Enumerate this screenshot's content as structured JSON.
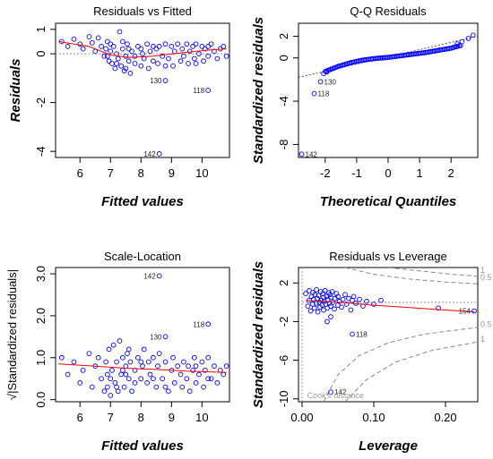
{
  "figure_title": "",
  "chart_data": [
    {
      "id": "rvf",
      "type": "scatter",
      "title": "Residuals vs Fitted",
      "xlabel": "Fitted values",
      "ylabel": "Residuals",
      "xlim": [
        5.2,
        10.9
      ],
      "ylim": [
        -4.25,
        1.25
      ],
      "xticks": [
        6,
        7,
        8,
        9,
        10
      ],
      "yticks": [
        1,
        0,
        -2,
        -4
      ],
      "y_tick_rotated": true,
      "point_color": "#0000ff",
      "smooth_color": "#ff0000",
      "refline": {
        "type": "h",
        "value": 0
      },
      "smooth": [
        [
          5.3,
          0.5
        ],
        [
          6.3,
          0.3
        ],
        [
          7.0,
          -0.05
        ],
        [
          7.6,
          -0.15
        ],
        [
          8.4,
          -0.1
        ],
        [
          9.4,
          0.05
        ],
        [
          10.2,
          0.15
        ],
        [
          10.8,
          0.2
        ]
      ],
      "points": [
        [
          5.4,
          0.5
        ],
        [
          5.6,
          0.3
        ],
        [
          5.8,
          0.6
        ],
        [
          6.0,
          0.4
        ],
        [
          6.1,
          0.2
        ],
        [
          6.3,
          0.7
        ],
        [
          6.4,
          0.45
        ],
        [
          6.5,
          0.1
        ],
        [
          6.6,
          0.65
        ],
        [
          6.7,
          0.3
        ],
        [
          6.8,
          -0.1
        ],
        [
          6.85,
          0.2
        ],
        [
          6.9,
          0.5
        ],
        [
          6.95,
          -0.3
        ],
        [
          7.0,
          0.1
        ],
        [
          7.05,
          -0.4
        ],
        [
          7.1,
          0.3
        ],
        [
          7.15,
          -0.6
        ],
        [
          7.2,
          0.0
        ],
        [
          7.25,
          -0.2
        ],
        [
          7.3,
          0.9
        ],
        [
          7.35,
          -0.5
        ],
        [
          7.4,
          0.2
        ],
        [
          7.45,
          -0.7
        ],
        [
          7.5,
          -0.1
        ],
        [
          7.55,
          0.4
        ],
        [
          7.6,
          -0.3
        ],
        [
          7.65,
          -0.8
        ],
        [
          7.7,
          0.1
        ],
        [
          7.8,
          -0.4
        ],
        [
          7.9,
          0.3
        ],
        [
          8.0,
          -0.5
        ],
        [
          8.05,
          0.0
        ],
        [
          8.1,
          -0.2
        ],
        [
          8.2,
          0.4
        ],
        [
          8.25,
          -0.6
        ],
        [
          8.3,
          0.1
        ],
        [
          8.4,
          -0.3
        ],
        [
          8.5,
          0.2
        ],
        [
          8.55,
          -0.4
        ],
        [
          8.6,
          0.3
        ],
        [
          8.7,
          -0.1
        ],
        [
          8.8,
          0.4
        ],
        [
          8.9,
          -0.2
        ],
        [
          9.0,
          0.3
        ],
        [
          9.05,
          -0.5
        ],
        [
          9.1,
          0.1
        ],
        [
          9.2,
          0.4
        ],
        [
          9.3,
          -0.3
        ],
        [
          9.35,
          0.2
        ],
        [
          9.4,
          -0.1
        ],
        [
          9.5,
          0.4
        ],
        [
          9.55,
          -0.4
        ],
        [
          9.6,
          0.1
        ],
        [
          9.7,
          0.3
        ],
        [
          9.75,
          -0.2
        ],
        [
          9.8,
          0.4
        ],
        [
          9.9,
          0.0
        ],
        [
          10.0,
          0.3
        ],
        [
          10.05,
          -0.3
        ],
        [
          10.1,
          0.2
        ],
        [
          10.2,
          -0.1
        ],
        [
          10.3,
          0.4
        ],
        [
          10.4,
          0.1
        ],
        [
          10.5,
          -0.2
        ],
        [
          10.6,
          0.2
        ],
        [
          10.7,
          0.3
        ],
        [
          10.8,
          -0.1
        ],
        [
          7.0,
          0.4
        ],
        [
          7.2,
          -0.4
        ],
        [
          7.4,
          0.5
        ],
        [
          7.6,
          0.2
        ],
        [
          7.8,
          -0.1
        ],
        [
          8.0,
          0.2
        ],
        [
          8.8,
          -0.5
        ],
        [
          9.8,
          -0.4
        ],
        [
          10.2,
          0.3
        ],
        [
          6.9,
          -0.1
        ],
        [
          7.5,
          -0.6
        ],
        [
          8.4,
          0.3
        ]
      ],
      "outliers": [
        {
          "label": "130",
          "x": 8.8,
          "y": -1.1
        },
        {
          "label": "118",
          "x": 10.2,
          "y": -1.5
        },
        {
          "label": "142",
          "x": 8.6,
          "y": -4.1
        }
      ]
    },
    {
      "id": "qq",
      "type": "scatter",
      "title": "Q-Q Residuals",
      "xlabel": "Theoretical Quantiles",
      "ylabel": "Standardized residuals",
      "xlim": [
        -2.85,
        2.85
      ],
      "ylim": [
        -9.2,
        3.2
      ],
      "xticks": [
        -2,
        -1,
        0,
        1,
        2
      ],
      "yticks": [
        2,
        0,
        -4,
        -8
      ],
      "y_tick_rotated": true,
      "point_color": "#0000ff",
      "refline": {
        "type": "ab",
        "points": [
          [
            -2.85,
            -1.8
          ],
          [
            2.85,
            2.0
          ]
        ]
      },
      "qq_curve": [
        [
          -2.0,
          -1.25
        ],
        [
          -1.6,
          -0.8
        ],
        [
          -1.2,
          -0.45
        ],
        [
          -0.8,
          -0.2
        ],
        [
          -0.4,
          -0.05
        ],
        [
          0.0,
          0.05
        ],
        [
          0.4,
          0.2
        ],
        [
          0.8,
          0.35
        ],
        [
          1.2,
          0.5
        ],
        [
          1.6,
          0.7
        ],
        [
          2.0,
          0.9
        ],
        [
          2.3,
          1.15
        ]
      ],
      "curve_points": 95,
      "extra_points": [
        [
          2.2,
          1.3
        ],
        [
          2.35,
          1.5
        ],
        [
          2.55,
          1.8
        ],
        [
          2.7,
          2.1
        ],
        [
          -1.95,
          -1.3
        ],
        [
          -2.05,
          -1.45
        ]
      ],
      "outliers": [
        {
          "label": "130",
          "x": -2.15,
          "y": -2.2
        },
        {
          "label": "118",
          "x": -2.35,
          "y": -3.3
        },
        {
          "label": "142",
          "x": -2.75,
          "y": -8.9
        }
      ]
    },
    {
      "id": "sl",
      "type": "scatter",
      "title": "Scale-Location",
      "xlabel": "Fitted values",
      "ylabel": "√|Standardized residuals|",
      "xlim": [
        5.2,
        10.9
      ],
      "ylim": [
        -0.05,
        3.15
      ],
      "xticks": [
        6,
        7,
        8,
        9,
        10
      ],
      "yticks": [
        3.0,
        2.0,
        1.0,
        0.0
      ],
      "y_tick_labels": [
        "3.0",
        "2.0",
        "1.0",
        "0.0"
      ],
      "y_tick_rotated": true,
      "point_color": "#0000ff",
      "smooth_color": "#ff0000",
      "smooth": [
        [
          5.3,
          0.85
        ],
        [
          6.5,
          0.8
        ],
        [
          7.5,
          0.75
        ],
        [
          8.5,
          0.72
        ],
        [
          9.5,
          0.68
        ],
        [
          10.8,
          0.65
        ]
      ],
      "points": [
        [
          5.4,
          1.0
        ],
        [
          5.6,
          0.6
        ],
        [
          5.8,
          0.9
        ],
        [
          6.0,
          0.4
        ],
        [
          6.1,
          0.7
        ],
        [
          6.3,
          1.1
        ],
        [
          6.4,
          0.3
        ],
        [
          6.5,
          0.8
        ],
        [
          6.6,
          1.0
        ],
        [
          6.7,
          0.5
        ],
        [
          6.8,
          0.2
        ],
        [
          6.85,
          0.9
        ],
        [
          6.9,
          0.6
        ],
        [
          6.95,
          1.2
        ],
        [
          7.0,
          0.1
        ],
        [
          7.05,
          0.7
        ],
        [
          7.1,
          1.3
        ],
        [
          7.15,
          0.4
        ],
        [
          7.2,
          0.9
        ],
        [
          7.25,
          0.2
        ],
        [
          7.3,
          1.4
        ],
        [
          7.35,
          0.6
        ],
        [
          7.4,
          1.0
        ],
        [
          7.45,
          0.3
        ],
        [
          7.5,
          0.8
        ],
        [
          7.55,
          1.1
        ],
        [
          7.6,
          0.5
        ],
        [
          7.65,
          0.9
        ],
        [
          7.7,
          0.2
        ],
        [
          7.8,
          0.7
        ],
        [
          7.9,
          1.0
        ],
        [
          8.0,
          0.5
        ],
        [
          8.05,
          0.8
        ],
        [
          8.1,
          1.2
        ],
        [
          8.2,
          0.4
        ],
        [
          8.25,
          0.9
        ],
        [
          8.3,
          0.6
        ],
        [
          8.4,
          1.0
        ],
        [
          8.5,
          0.3
        ],
        [
          8.55,
          0.8
        ],
        [
          8.6,
          1.1
        ],
        [
          8.7,
          0.5
        ],
        [
          8.8,
          0.9
        ],
        [
          8.9,
          0.2
        ],
        [
          9.0,
          0.7
        ],
        [
          9.05,
          1.0
        ],
        [
          9.1,
          0.4
        ],
        [
          9.2,
          0.8
        ],
        [
          9.3,
          0.6
        ],
        [
          9.35,
          0.3
        ],
        [
          9.4,
          0.9
        ],
        [
          9.5,
          0.5
        ],
        [
          9.55,
          0.8
        ],
        [
          9.6,
          0.2
        ],
        [
          9.7,
          0.7
        ],
        [
          9.75,
          1.0
        ],
        [
          9.8,
          0.4
        ],
        [
          9.9,
          0.6
        ],
        [
          10.0,
          0.9
        ],
        [
          10.05,
          0.3
        ],
        [
          10.1,
          0.7
        ],
        [
          10.2,
          1.0
        ],
        [
          10.3,
          0.5
        ],
        [
          10.4,
          0.8
        ],
        [
          10.5,
          0.4
        ],
        [
          10.6,
          0.7
        ],
        [
          10.7,
          0.6
        ],
        [
          10.8,
          0.8
        ],
        [
          7.0,
          0.5
        ],
        [
          7.2,
          0.3
        ],
        [
          7.4,
          0.7
        ],
        [
          7.6,
          1.2
        ],
        [
          7.8,
          0.4
        ],
        [
          8.0,
          0.9
        ],
        [
          8.8,
          0.3
        ],
        [
          9.8,
          0.8
        ],
        [
          10.2,
          0.5
        ],
        [
          6.9,
          0.3
        ],
        [
          7.5,
          0.6
        ],
        [
          8.4,
          0.5
        ]
      ],
      "outliers": [
        {
          "label": "142",
          "x": 8.6,
          "y": 2.95
        },
        {
          "label": "118",
          "x": 10.2,
          "y": 1.8
        },
        {
          "label": "130",
          "x": 8.8,
          "y": 1.5
        }
      ]
    },
    {
      "id": "rvl",
      "type": "scatter",
      "title": "Residuals vs Leverage",
      "xlabel": "Leverage",
      "ylabel": "Standardized residuals",
      "xlim": [
        -0.005,
        0.245
      ],
      "ylim": [
        -10.3,
        3.6
      ],
      "xticks": [
        0.0,
        0.1,
        0.2
      ],
      "x_tick_labels": [
        "0.00",
        "0.10",
        "0.20"
      ],
      "yticks": [
        2,
        -2,
        -6,
        -10
      ],
      "y_tick_rotated": true,
      "point_color": "#0000ff",
      "smooth_color": "#ff0000",
      "smooth": [
        [
          0.005,
          0.2
        ],
        [
          0.05,
          0.0
        ],
        [
          0.1,
          -0.3
        ],
        [
          0.15,
          -0.55
        ],
        [
          0.2,
          -0.8
        ],
        [
          0.24,
          -1.0
        ]
      ],
      "cook_levels": [
        "0.5",
        "1"
      ],
      "cook_label": "Cook's distance",
      "cook_curves": {
        "upper_05": [
          [
            0.06,
            3.6
          ],
          [
            0.1,
            2.9
          ],
          [
            0.15,
            2.4
          ],
          [
            0.2,
            2.1
          ],
          [
            0.245,
            1.9
          ]
        ],
        "upper_1": [
          [
            0.12,
            3.6
          ],
          [
            0.17,
            3.2
          ],
          [
            0.21,
            2.9
          ],
          [
            0.245,
            2.7
          ]
        ],
        "lower_05": [
          [
            0.03,
            -10.3
          ],
          [
            0.05,
            -7.5
          ],
          [
            0.08,
            -5.5
          ],
          [
            0.12,
            -4.2
          ],
          [
            0.17,
            -3.3
          ],
          [
            0.245,
            -2.6
          ]
        ],
        "lower_1": [
          [
            0.06,
            -10.3
          ],
          [
            0.09,
            -8.0
          ],
          [
            0.13,
            -6.2
          ],
          [
            0.18,
            -5.0
          ],
          [
            0.245,
            -4.1
          ]
        ]
      },
      "cook_tags": [
        {
          "label": "0.5",
          "x": 0.245,
          "y": 2.6
        },
        {
          "label": "1",
          "x": 0.245,
          "y": 3.3
        },
        {
          "label": "0.5",
          "x": 0.245,
          "y": -2.3
        },
        {
          "label": "1",
          "x": 0.245,
          "y": -3.8
        }
      ],
      "points": [
        [
          0.005,
          0.9
        ],
        [
          0.008,
          -0.4
        ],
        [
          0.01,
          1.2
        ],
        [
          0.01,
          0.2
        ],
        [
          0.012,
          -0.9
        ],
        [
          0.013,
          0.6
        ],
        [
          0.015,
          -0.2
        ],
        [
          0.015,
          1.0
        ],
        [
          0.016,
          0.3
        ],
        [
          0.017,
          -0.6
        ],
        [
          0.018,
          0.8
        ],
        [
          0.02,
          -0.1
        ],
        [
          0.02,
          1.3
        ],
        [
          0.021,
          0.4
        ],
        [
          0.022,
          -1.0
        ],
        [
          0.023,
          0.7
        ],
        [
          0.024,
          0.0
        ],
        [
          0.025,
          -0.5
        ],
        [
          0.026,
          1.1
        ],
        [
          0.027,
          0.2
        ],
        [
          0.028,
          -0.3
        ],
        [
          0.029,
          0.9
        ],
        [
          0.03,
          0.5
        ],
        [
          0.03,
          -0.8
        ],
        [
          0.031,
          0.1
        ],
        [
          0.032,
          1.2
        ],
        [
          0.033,
          -0.2
        ],
        [
          0.034,
          0.6
        ],
        [
          0.035,
          -0.6
        ],
        [
          0.036,
          0.3
        ],
        [
          0.037,
          1.0
        ],
        [
          0.038,
          -0.1
        ],
        [
          0.039,
          0.8
        ],
        [
          0.04,
          -0.4
        ],
        [
          0.04,
          0.5
        ],
        [
          0.042,
          1.1
        ],
        [
          0.043,
          0.0
        ],
        [
          0.045,
          -0.7
        ],
        [
          0.046,
          0.4
        ],
        [
          0.048,
          0.9
        ],
        [
          0.05,
          -0.3
        ],
        [
          0.05,
          0.6
        ],
        [
          0.052,
          0.1
        ],
        [
          0.055,
          -0.5
        ],
        [
          0.057,
          0.3
        ],
        [
          0.06,
          0.8
        ],
        [
          0.062,
          -0.2
        ],
        [
          0.065,
          0.4
        ],
        [
          0.068,
          -0.8
        ],
        [
          0.07,
          0.2
        ],
        [
          0.072,
          0.6
        ],
        [
          0.075,
          -0.1
        ],
        [
          0.08,
          0.3
        ],
        [
          0.085,
          -0.4
        ],
        [
          0.09,
          0.1
        ],
        [
          0.1,
          -0.2
        ],
        [
          0.11,
          0.2
        ],
        [
          0.035,
          -2.0
        ],
        [
          0.04,
          -1.5
        ],
        [
          0.19,
          -0.6
        ]
      ],
      "outliers": [
        {
          "label": "118",
          "x": 0.07,
          "y": -3.3
        },
        {
          "label": "154",
          "x": 0.24,
          "y": -0.9
        },
        {
          "label": "142",
          "x": 0.04,
          "y": -9.3
        }
      ]
    }
  ]
}
